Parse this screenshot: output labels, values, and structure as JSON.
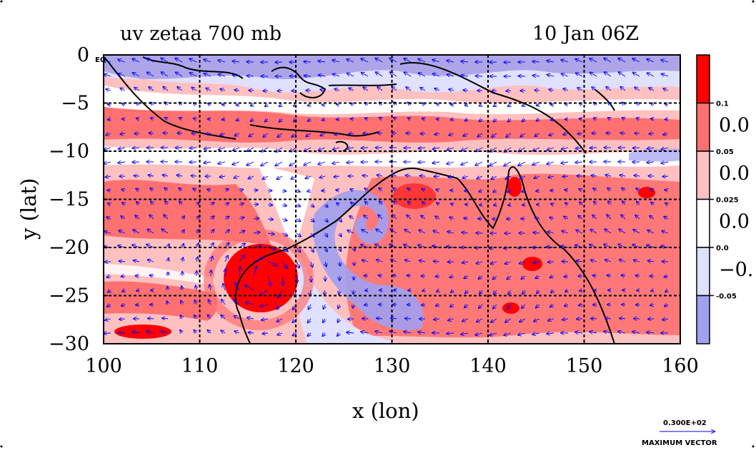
{
  "chart_data": {
    "type": "heatmap",
    "title_left": "uv zetaa 700 mb",
    "title_right": "10 Jan 06Z",
    "xlabel": "x (lon)",
    "ylabel": "y (lat)",
    "xlim": [
      100,
      160
    ],
    "ylim": [
      -30,
      0
    ],
    "x_ticks": [
      "100",
      "110",
      "120",
      "130",
      "140",
      "150",
      "160"
    ],
    "y_ticks": [
      "0",
      "−5",
      "−10",
      "−15",
      "−20",
      "−25",
      "−30"
    ],
    "y_tick_values": [
      0,
      -5,
      -10,
      -15,
      -20,
      -25,
      -30
    ],
    "x_tick_values": [
      100,
      110,
      120,
      130,
      140,
      150,
      160
    ],
    "corner_label": "EQ",
    "grid": true,
    "colorbar": {
      "colors": [
        "#ff0000",
        "#ff7070",
        "#ffc0c0",
        "#ffffff",
        "#e0e0ff",
        "#a0a0f0"
      ],
      "small_labels": [
        "0.1",
        "0.05",
        "0.025",
        "0.0",
        "-0.05"
      ],
      "large_labels": [
        "0.0",
        "0.0",
        "0.0",
        "−0."
      ]
    },
    "vector_legend": {
      "value": "0.300E+02",
      "caption": "MAXIMUM VECTOR"
    },
    "features": [
      {
        "name": "strong positive vortex",
        "lon": 115.5,
        "lat": -23.0,
        "level": "0.1"
      },
      {
        "name": "positive band",
        "lon_range": [
          100,
          160
        ],
        "lat_range": [
          -9,
          -5
        ],
        "level": "0.05"
      }
    ]
  },
  "colors": {
    "axis": "#000000",
    "grid": "#000000",
    "coast": "#000000",
    "vectors": "#0000ff",
    "plot_background": "#ffc0c0"
  }
}
